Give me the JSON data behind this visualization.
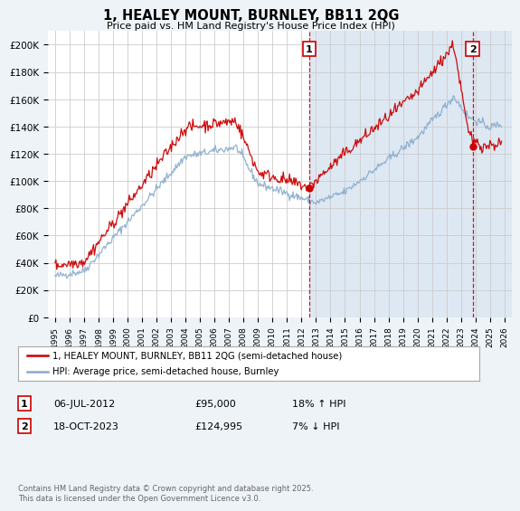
{
  "title": "1, HEALEY MOUNT, BURNLEY, BB11 2QG",
  "subtitle": "Price paid vs. HM Land Registry's House Price Index (HPI)",
  "ylabel_ticks": [
    "£0",
    "£20K",
    "£40K",
    "£60K",
    "£80K",
    "£100K",
    "£120K",
    "£140K",
    "£160K",
    "£180K",
    "£200K"
  ],
  "ytick_values": [
    0,
    20000,
    40000,
    60000,
    80000,
    100000,
    120000,
    140000,
    160000,
    180000,
    200000
  ],
  "ylim": [
    0,
    210000
  ],
  "xlim_start": 1994.5,
  "xlim_end": 2026.5,
  "vline1_x": 2012.52,
  "vline2_x": 2023.8,
  "sale1_price": 95000,
  "sale2_price": 124995,
  "legend_line1": "1, HEALEY MOUNT, BURNLEY, BB11 2QG (semi-detached house)",
  "legend_line2": "HPI: Average price, semi-detached house, Burnley",
  "annotation1_date": "06-JUL-2012",
  "annotation1_price": "£95,000",
  "annotation1_hpi": "18% ↑ HPI",
  "annotation2_date": "18-OCT-2023",
  "annotation2_price": "£124,995",
  "annotation2_hpi": "7% ↓ HPI",
  "footnote": "Contains HM Land Registry data © Crown copyright and database right 2025.\nThis data is licensed under the Open Government Licence v3.0.",
  "line1_color": "#cc0000",
  "line2_color": "#88aacc",
  "vline_color": "#cc0000",
  "grid_color": "#cccccc",
  "background_color": "#eef3f8",
  "plot_bg_color": "#ffffff",
  "shade_color": "#dde8f3",
  "marker_box_color": "#cc0000",
  "sale_dot_color": "#cc0000"
}
